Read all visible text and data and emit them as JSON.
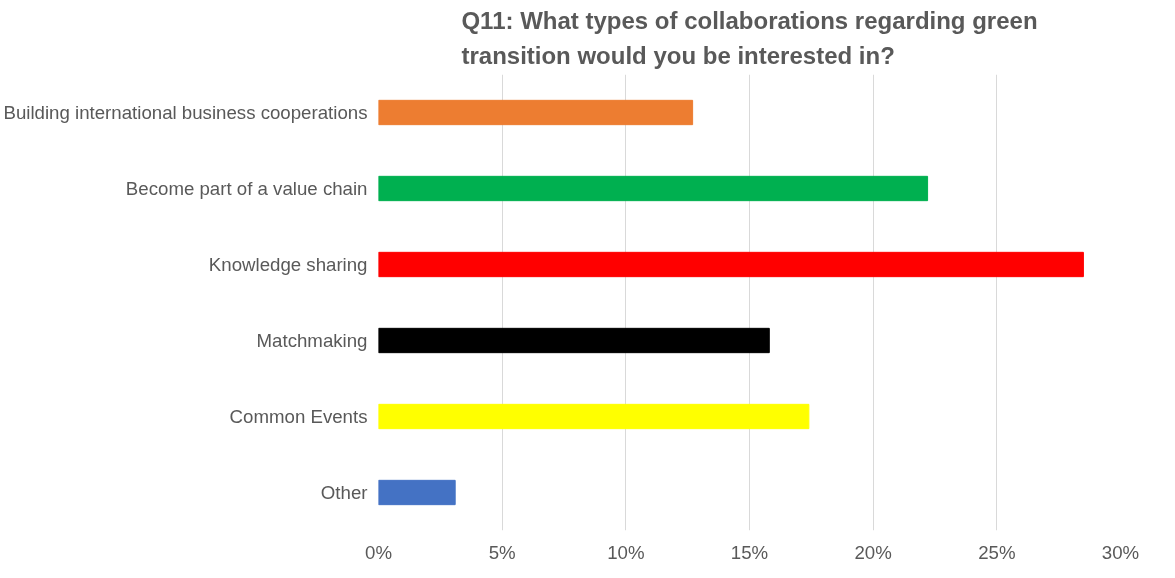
{
  "chart_data": {
    "type": "bar",
    "orientation": "horizontal",
    "title": "Q11: What types of collaborations regarding green transition would you be interested in?",
    "categories": [
      "Building international business cooperations",
      "Become part of a value chain",
      "Knowledge sharing",
      "Matchmaking",
      "Common Events",
      "Other"
    ],
    "values": [
      12.7,
      22.2,
      28.5,
      15.8,
      17.4,
      3.1
    ],
    "colors": [
      "#ed7d31",
      "#00b050",
      "#ff0000",
      "#000000",
      "#ffff00",
      "#4472c4"
    ],
    "xlim": [
      0,
      30
    ],
    "xticks": [
      {
        "value": 0,
        "label": "0%"
      },
      {
        "value": 5,
        "label": "5%"
      },
      {
        "value": 10,
        "label": "10%"
      },
      {
        "value": 15,
        "label": "15%"
      },
      {
        "value": 20,
        "label": "20%"
      },
      {
        "value": 25,
        "label": "25%"
      },
      {
        "value": 30,
        "label": "30%"
      }
    ],
    "grid": "x"
  }
}
